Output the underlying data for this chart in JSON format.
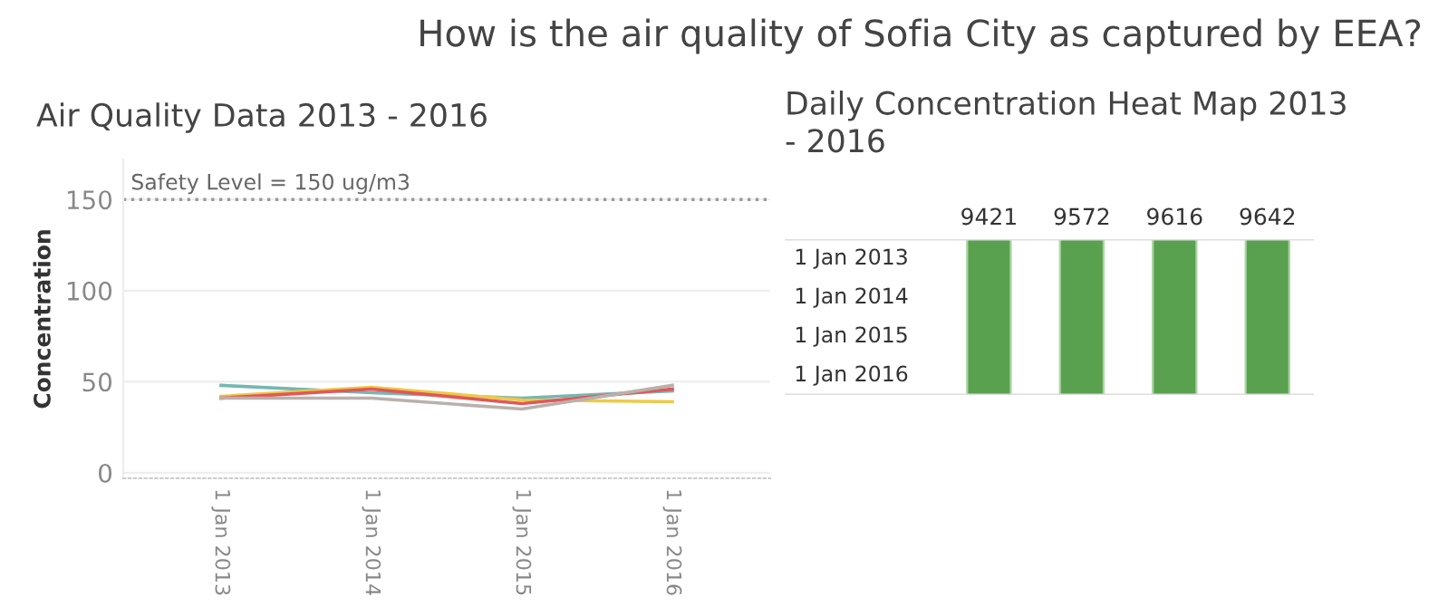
{
  "chart_data": [
    {
      "type": "line",
      "title": "Air Quality Data 2013 - 2016",
      "ylabel": "Concentration",
      "annotations": [
        "How is the air quality of Sofia City as captured by EEA?"
      ],
      "categories": [
        "1 Jan 2013",
        "1 Jan 2014",
        "1 Jan 2015",
        "1 Jan 2016"
      ],
      "series": [
        {
          "color": "#76b7b2",
          "values": [
            48,
            44,
            41,
            45
          ]
        },
        {
          "color": "#edc948",
          "values": [
            42,
            47,
            40,
            39
          ]
        },
        {
          "color": "#e15759",
          "values": [
            41,
            46,
            38,
            46
          ]
        },
        {
          "color": "#bab0ac",
          "values": [
            41,
            41,
            35,
            48
          ]
        }
      ],
      "ylim": [
        -3,
        172
      ],
      "yticks": [
        0,
        50,
        100,
        150
      ],
      "grid": "y",
      "legend": false,
      "ref_lines": [
        {
          "axis": "y",
          "value": 150,
          "label": "Safety Level = 150 ug/m3",
          "line_style": "dotted",
          "color": "#999999"
        }
      ]
    },
    {
      "type": "other",
      "title": "Daily Concentration Heat Map 2013 - 2016",
      "categories": [
        "9421",
        "9572",
        "9616",
        "9642"
      ],
      "y_categories": [
        "1 Jan 2013",
        "1 Jan 2014",
        "1 Jan 2015",
        "1 Jan 2016"
      ],
      "colors": [
        "#59a14f",
        "#59a14f",
        "#59a14f",
        "#59a14f"
      ]
    }
  ]
}
